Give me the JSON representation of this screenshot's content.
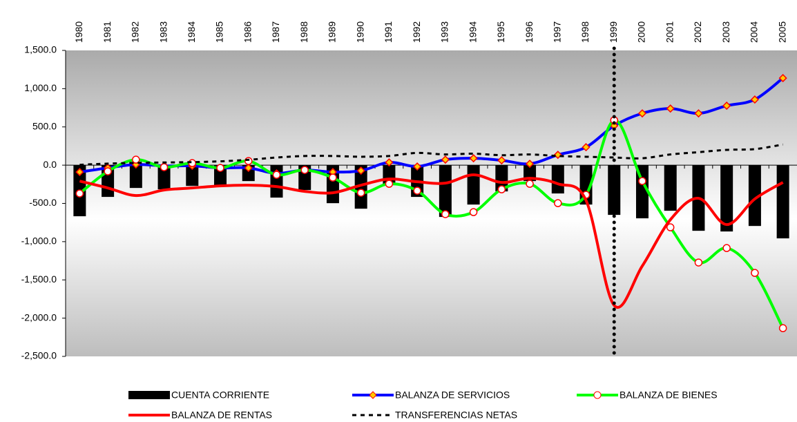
{
  "chart_data": {
    "type": "combo",
    "categories": [
      "1980",
      "1981",
      "1982",
      "1983",
      "1984",
      "1985",
      "1986",
      "1987",
      "1988",
      "1989",
      "1990",
      "1991",
      "1992",
      "1993",
      "1994",
      "1995",
      "1996",
      "1997",
      "1998",
      "1999",
      "2000",
      "2001",
      "2002",
      "2003",
      "2004",
      "2005"
    ],
    "ylim": [
      -2500,
      1500
    ],
    "yticks": [
      {
        "value": -2500,
        "label": "-2,500.0"
      },
      {
        "value": -2000,
        "label": "-2,000.0"
      },
      {
        "value": -1500,
        "label": "-1,500.0"
      },
      {
        "value": -1000,
        "label": "-1,000.0"
      },
      {
        "value": -500,
        "label": "-500.0"
      },
      {
        "value": 0,
        "label": "0.0"
      },
      {
        "value": 500,
        "label": "500.0"
      },
      {
        "value": 1000,
        "label": "1,000.0"
      },
      {
        "value": 1500,
        "label": "1,500.0"
      }
    ],
    "vline": "1999",
    "series": [
      {
        "name": "CUENTA CORRIENTE",
        "type": "bar",
        "color": "#000000",
        "values": [
          -668,
          -415,
          -298,
          -316,
          -271,
          -280,
          -208,
          -424,
          -325,
          -497,
          -569,
          -262,
          -415,
          -677,
          -515,
          -343,
          -208,
          -370,
          -515,
          -650,
          -695,
          -596,
          -858,
          -867,
          -795,
          -957
        ]
      },
      {
        "name": "BALANZA DE SERVICIOS",
        "type": "line",
        "color": "#0000ff",
        "marker": "diamond",
        "values": [
          -90,
          -36,
          9,
          -9,
          -9,
          -36,
          -36,
          -108,
          -63,
          -90,
          -72,
          36,
          -18,
          72,
          90,
          63,
          18,
          135,
          235,
          515,
          677,
          740,
          677,
          777,
          858,
          1138
        ]
      },
      {
        "name": "BALANZA DE BIENES",
        "type": "line",
        "color": "#00ff00",
        "marker": "circle",
        "values": [
          -370,
          -81,
          72,
          -27,
          27,
          -36,
          54,
          -126,
          -63,
          -163,
          -361,
          -244,
          -334,
          -641,
          -614,
          -316,
          -244,
          -497,
          -388,
          587,
          -208,
          -813,
          -1273,
          -1084,
          -1409,
          -2131
        ]
      },
      {
        "name": "BALANZA DE RENTAS",
        "type": "line",
        "color": "#ff0000",
        "values": [
          -208,
          -298,
          -397,
          -325,
          -298,
          -271,
          -262,
          -280,
          -343,
          -361,
          -262,
          -181,
          -217,
          -235,
          -126,
          -226,
          -172,
          -244,
          -460,
          -1833,
          -1318,
          -713,
          -433,
          -777,
          -442,
          -226
        ]
      },
      {
        "name": "TRANSFERENCIAS NETAS",
        "type": "line",
        "color": "#000000",
        "dash": true,
        "values": [
          5,
          20,
          30,
          35,
          40,
          50,
          70,
          100,
          120,
          120,
          110,
          120,
          160,
          140,
          150,
          130,
          140,
          120,
          110,
          100,
          90,
          140,
          170,
          200,
          210,
          270
        ]
      }
    ]
  }
}
